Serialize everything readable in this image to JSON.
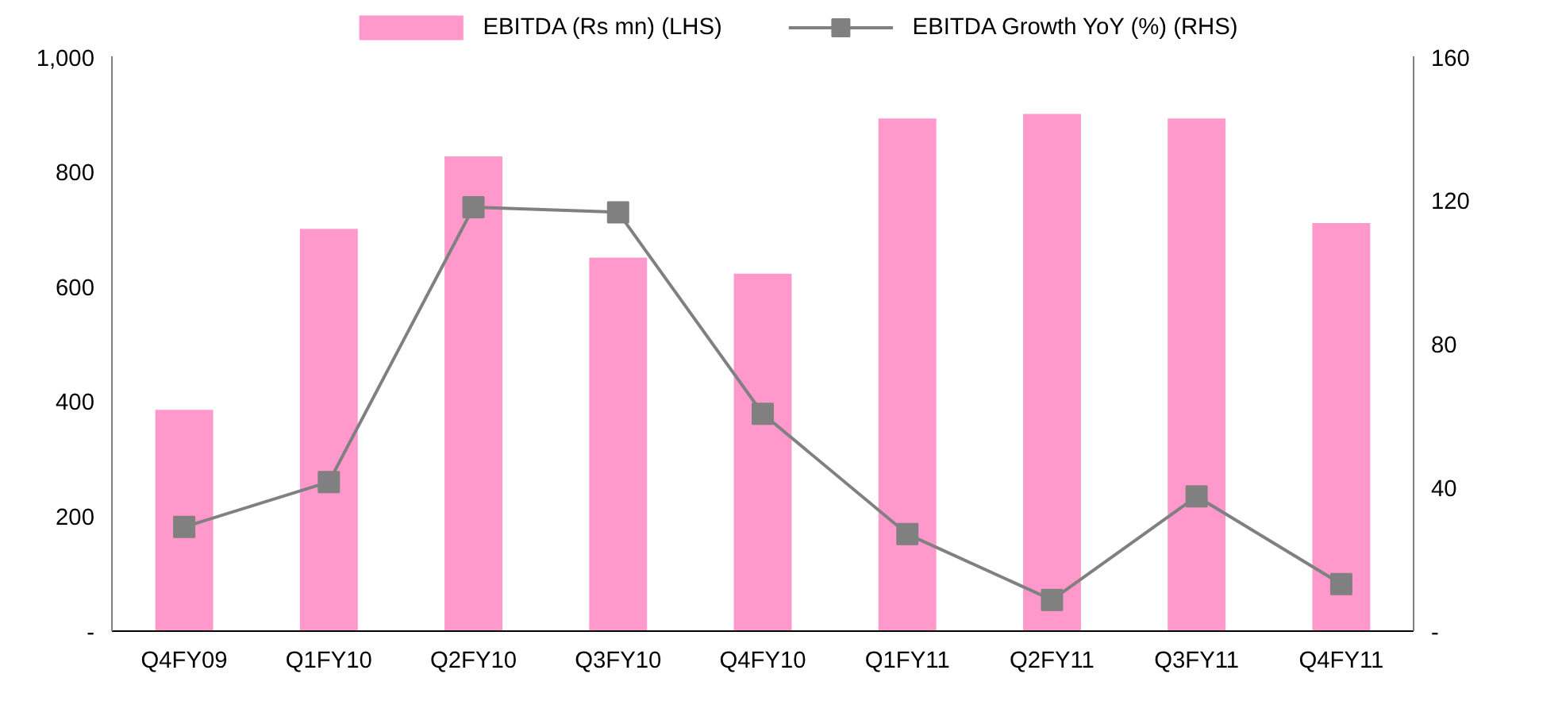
{
  "chart_data": {
    "type": "bar",
    "categories": [
      "Q4FY09",
      "Q1FY10",
      "Q2FY10",
      "Q3FY10",
      "Q4FY10",
      "Q1FY11",
      "Q2FY11",
      "Q3FY11",
      "Q4FY11"
    ],
    "series": [
      {
        "name": "EBITDA (Rs mn) (LHS)",
        "color": "#ff99cc",
        "values": [
          385,
          700,
          826,
          650,
          622,
          892,
          900,
          892,
          710
        ]
      },
      {
        "name": "EBITDA Growth YoY (%) (RHS)",
        "type": "line",
        "axis": "y2",
        "color": "#808080",
        "marker": "square",
        "values": [
          29,
          41.5,
          118,
          116.6,
          60.5,
          27,
          8.7,
          37.5,
          13.1
        ]
      }
    ],
    "ylim": [
      0,
      1000
    ],
    "yticks": [
      {
        "value": 0,
        "label": "-"
      },
      200,
      400,
      600,
      800,
      {
        "value": 1000,
        "label": "1,000"
      }
    ],
    "y2lim": [
      0,
      160
    ],
    "y2ticks": [
      {
        "value": 0,
        "label": "-"
      },
      40,
      80,
      120,
      160
    ],
    "grid": false,
    "legend": "top"
  }
}
